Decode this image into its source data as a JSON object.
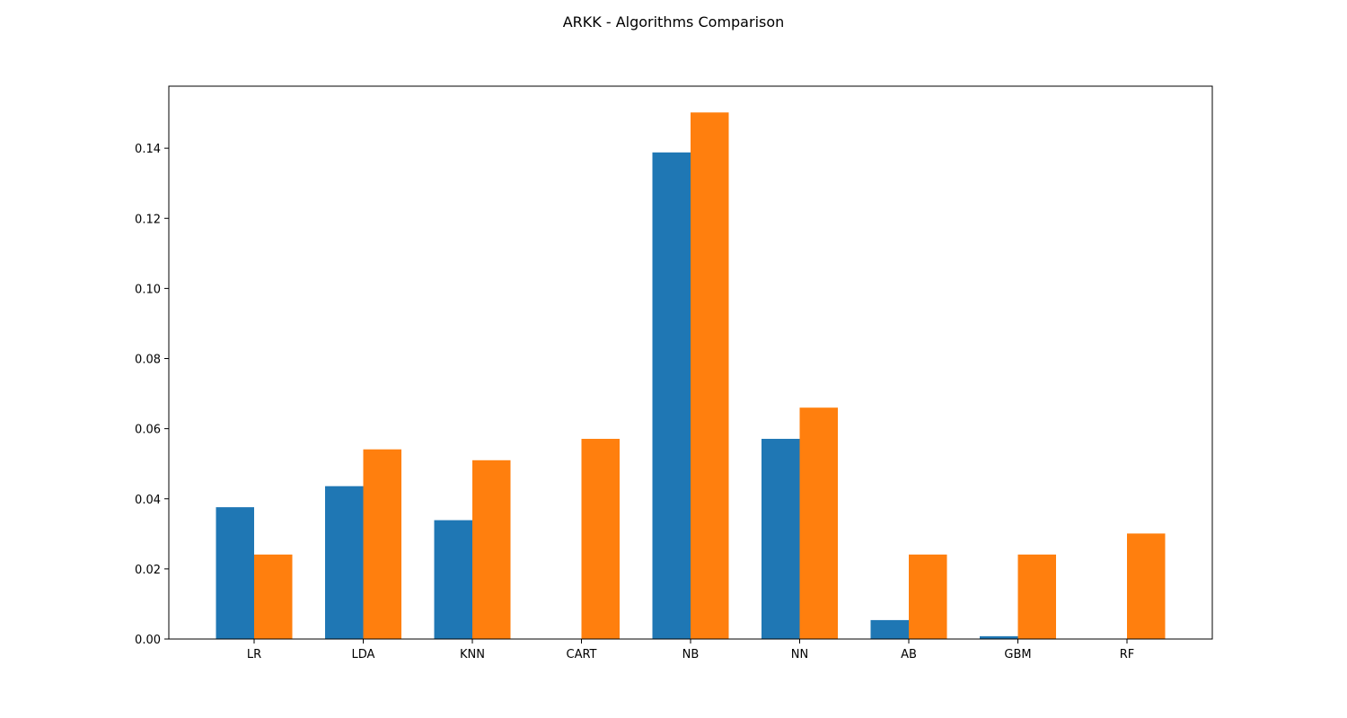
{
  "chart_data": {
    "type": "bar",
    "title": "ARKK - Algorithms Comparison",
    "xlabel": "",
    "ylabel": "",
    "categories": [
      "LR",
      "LDA",
      "KNN",
      "CART",
      "NB",
      "NN",
      "AB",
      "GBM",
      "RF"
    ],
    "series": [
      {
        "color": "#1f77b4",
        "values": [
          0.0376,
          0.0436,
          0.0339,
          0.0,
          0.1388,
          0.0571,
          0.0054,
          0.0008,
          0.0
        ]
      },
      {
        "color": "#ff7f0e",
        "values": [
          0.0241,
          0.0541,
          0.051,
          0.0571,
          0.1502,
          0.066,
          0.0241,
          0.0241,
          0.0301
        ]
      }
    ],
    "ylim": [
      0,
      0.1577
    ],
    "yticks": [
      "0.00",
      "0.02",
      "0.04",
      "0.06",
      "0.08",
      "0.10",
      "0.12",
      "0.14"
    ],
    "grid": false,
    "legend": "none"
  }
}
